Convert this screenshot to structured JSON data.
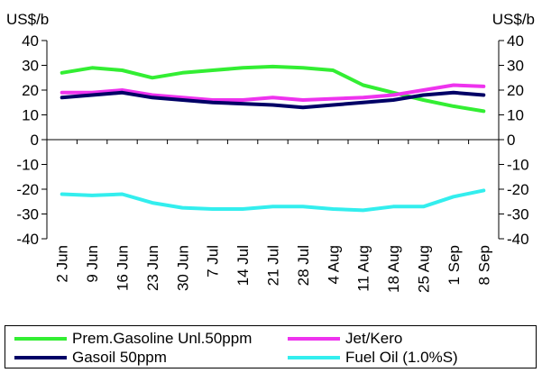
{
  "chart_data": {
    "type": "line",
    "title_fragment": "",
    "y_unit_left": "US$/b",
    "y_unit_right": "US$/b",
    "ylim": [
      -40,
      40
    ],
    "yticks": [
      40,
      30,
      20,
      10,
      0,
      -10,
      -20,
      -30,
      -40
    ],
    "categories": [
      "2 Jun",
      "9 Jun",
      "16 Jun",
      "23 Jun",
      "30 Jun",
      "7 Jul",
      "14 Jul",
      "21 Jul",
      "28 Jul",
      "4 Aug",
      "11 Aug",
      "18 Aug",
      "25 Aug",
      "1 Sep",
      "8 Sep"
    ],
    "grid": false,
    "legend_position": "bottom",
    "series": [
      {
        "name": "Prem.Gasoline Unl.50ppm",
        "color": "#33ee33",
        "values": [
          27,
          29,
          28,
          25,
          27,
          28,
          29,
          29.5,
          29,
          28,
          22,
          19,
          16,
          13.5,
          11.5
        ]
      },
      {
        "name": "Jet/Kero",
        "color": "#ee33ee",
        "values": [
          19,
          19,
          20,
          18,
          17,
          16,
          16,
          17,
          16,
          16.5,
          17,
          18,
          20,
          22,
          21.5
        ]
      },
      {
        "name": "Gasoil 50ppm",
        "color": "#000066",
        "values": [
          17,
          18,
          19,
          17,
          16,
          15,
          14.5,
          14,
          13,
          14,
          15,
          16,
          18,
          19,
          18
        ]
      },
      {
        "name": "Fuel Oil (1.0%S)",
        "color": "#33eeee",
        "values": [
          -22,
          -22.5,
          -22,
          -25.5,
          -27.5,
          -28,
          -28,
          -27,
          -27,
          -28,
          -28.5,
          -27,
          -27,
          -23,
          -20.5
        ]
      }
    ]
  }
}
